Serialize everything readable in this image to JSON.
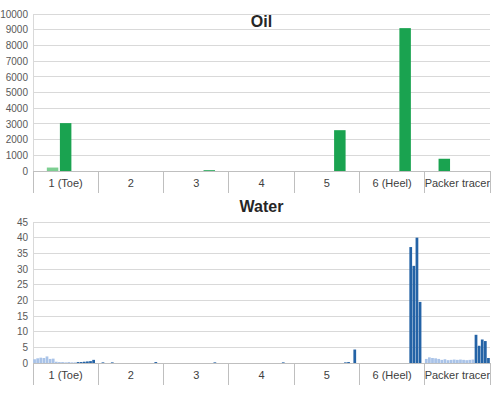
{
  "chart_data": [
    {
      "type": "bar",
      "title": "Oil",
      "categories": [
        null,
        null,
        "1 (Toe)",
        null,
        null,
        null,
        null,
        "2",
        null,
        null,
        null,
        null,
        "3",
        null,
        null,
        null,
        null,
        "4",
        null,
        null,
        null,
        null,
        "5",
        null,
        null,
        null,
        null,
        "6 (Heel)",
        null,
        null,
        null,
        null,
        "Packer tracer",
        null,
        null
      ],
      "values": [
        0,
        220,
        3050,
        0,
        0,
        0,
        0,
        0,
        0,
        0,
        0,
        0,
        0,
        50,
        0,
        0,
        0,
        0,
        0,
        0,
        0,
        0,
        0,
        2600,
        0,
        0,
        0,
        0,
        9100,
        0,
        0,
        780,
        0,
        0,
        0
      ],
      "colors": [
        "#1aa350",
        "#7dcf92",
        "#1aa350",
        "#1aa350",
        "#1aa350",
        "#1aa350",
        "#1aa350",
        "#1aa350",
        "#1aa350",
        "#1aa350",
        "#1aa350",
        "#1aa350",
        "#1aa350",
        "#1aa350",
        "#1aa350",
        "#1aa350",
        "#1aa350",
        "#1aa350",
        "#1aa350",
        "#1aa350",
        "#1aa350",
        "#1aa350",
        "#1aa350",
        "#1aa350",
        "#1aa350",
        "#1aa350",
        "#1aa350",
        "#1aa350",
        "#1aa350",
        "#1aa350",
        "#1aa350",
        "#1aa350",
        "#1aa350",
        "#1aa350",
        "#1aa350"
      ],
      "ylim": [
        0,
        10000
      ],
      "yticks": [
        0,
        1000,
        2000,
        3000,
        4000,
        5000,
        6000,
        7000,
        8000,
        9000,
        10000
      ],
      "grid": true
    },
    {
      "type": "bar",
      "title": "Water",
      "categories": [
        null,
        null,
        null,
        null,
        null,
        null,
        null,
        null,
        null,
        null,
        "1 (Toe)",
        null,
        null,
        null,
        null,
        null,
        null,
        null,
        null,
        null,
        null,
        null,
        null,
        null,
        null,
        null,
        null,
        null,
        null,
        null,
        null,
        "2",
        null,
        null,
        null,
        null,
        null,
        null,
        null,
        null,
        null,
        null,
        null,
        null,
        null,
        null,
        null,
        null,
        null,
        null,
        null,
        null,
        "3",
        null,
        null,
        null,
        null,
        null,
        null,
        null,
        null,
        null,
        null,
        null,
        null,
        null,
        null,
        null,
        null,
        null,
        null,
        null,
        null,
        "4",
        null,
        null,
        null,
        null,
        null,
        null,
        null,
        null,
        null,
        null,
        null,
        null,
        null,
        null,
        null,
        null,
        null,
        null,
        null,
        null,
        "5",
        null,
        null,
        null,
        null,
        null,
        null,
        null,
        null,
        null,
        null,
        null,
        null,
        null,
        null,
        null,
        null,
        null,
        null,
        null,
        null,
        "6 (Heel)",
        null,
        null,
        null,
        null,
        null,
        null,
        null,
        null,
        null,
        null,
        null,
        null,
        null,
        null,
        null,
        null,
        null,
        null,
        null,
        null,
        "Packer tracer",
        null,
        null,
        null,
        null,
        null,
        null,
        null,
        null,
        null,
        null
      ],
      "values": [
        1.2,
        1.5,
        1.7,
        1.6,
        2.1,
        1.3,
        1.4,
        0.4,
        0.3,
        0.3,
        0.2,
        0.3,
        0.2,
        0.2,
        0.3,
        0.3,
        0.4,
        0.5,
        0.6,
        1,
        0,
        0,
        0.2,
        0,
        0,
        0.2,
        0,
        0,
        0,
        0,
        0,
        0,
        0,
        0,
        0,
        0,
        0,
        0,
        0,
        0.3,
        0,
        0,
        0,
        0,
        0,
        0,
        0,
        0,
        0,
        0,
        0,
        0,
        0,
        0,
        0,
        0,
        0,
        0,
        0.2,
        0,
        0,
        0,
        0,
        0,
        0,
        0,
        0,
        0,
        0,
        0,
        0,
        0,
        0,
        0,
        0,
        0,
        0,
        0,
        0,
        0,
        0.2,
        0,
        0,
        0,
        0,
        0,
        0,
        0,
        0,
        0,
        0,
        0,
        0,
        0,
        0,
        0,
        0,
        0,
        0,
        0,
        0.2,
        0.3,
        0,
        4.3,
        0,
        0,
        0,
        0,
        0,
        0,
        0,
        0,
        0,
        0,
        0,
        0,
        0,
        0,
        0,
        0,
        0,
        37,
        31,
        40,
        19.5,
        0,
        1.3,
        1.8,
        1.6,
        1.5,
        1.3,
        1,
        1.2,
        0.9,
        1,
        1.1,
        1,
        1.1,
        1,
        0.9,
        1,
        1.1,
        9,
        5.5,
        7.5,
        7,
        1.6
      ],
      "colors": [
        "#a9c3e8",
        "#a9c3e8",
        "#a9c3e8",
        "#a9c3e8",
        "#a9c3e8",
        "#a9c3e8",
        "#a9c3e8",
        "#a9c3e8",
        "#a9c3e8",
        "#a9c3e8",
        "#a9c3e8",
        "#a9c3e8",
        "#a9c3e8",
        "#a9c3e8",
        "#2463a6",
        "#2463a6",
        "#2463a6",
        "#2463a6",
        "#2463a6",
        "#2463a6",
        "#2463a6",
        "#2463a6",
        "#2463a6",
        "#2463a6",
        "#2463a6",
        "#2463a6",
        "#2463a6",
        "#2463a6",
        "#2463a6",
        "#2463a6",
        "#2463a6",
        "#2463a6",
        "#2463a6",
        "#2463a6",
        "#2463a6",
        "#2463a6",
        "#2463a6",
        "#2463a6",
        "#2463a6",
        "#2463a6",
        "#2463a6",
        "#2463a6",
        "#2463a6",
        "#2463a6",
        "#2463a6",
        "#2463a6",
        "#2463a6",
        "#2463a6",
        "#2463a6",
        "#2463a6",
        "#2463a6",
        "#2463a6",
        "#2463a6",
        "#2463a6",
        "#2463a6",
        "#2463a6",
        "#2463a6",
        "#2463a6",
        "#2463a6",
        "#2463a6",
        "#2463a6",
        "#2463a6",
        "#2463a6",
        "#2463a6",
        "#2463a6",
        "#2463a6",
        "#2463a6",
        "#2463a6",
        "#2463a6",
        "#2463a6",
        "#2463a6",
        "#2463a6",
        "#2463a6",
        "#2463a6",
        "#2463a6",
        "#2463a6",
        "#2463a6",
        "#2463a6",
        "#2463a6",
        "#2463a6",
        "#2463a6",
        "#2463a6",
        "#2463a6",
        "#2463a6",
        "#2463a6",
        "#2463a6",
        "#2463a6",
        "#2463a6",
        "#2463a6",
        "#2463a6",
        "#2463a6",
        "#2463a6",
        "#2463a6",
        "#2463a6",
        "#2463a6",
        "#2463a6",
        "#2463a6",
        "#2463a6",
        "#2463a6",
        "#2463a6",
        "#2463a6",
        "#2463a6",
        "#2463a6",
        "#2463a6",
        "#2463a6",
        "#2463a6",
        "#2463a6",
        "#2463a6",
        "#2463a6",
        "#2463a6",
        "#2463a6",
        "#2463a6",
        "#2463a6",
        "#2463a6",
        "#2463a6",
        "#2463a6",
        "#2463a6",
        "#2463a6",
        "#2463a6",
        "#2463a6",
        "#2463a6",
        "#2463a6",
        "#2463a6",
        "#2463a6",
        "#2463a6",
        "#2463a6",
        "#a9c3e8",
        "#a9c3e8",
        "#a9c3e8",
        "#a9c3e8",
        "#a9c3e8",
        "#a9c3e8",
        "#a9c3e8",
        "#a9c3e8",
        "#a9c3e8",
        "#a9c3e8",
        "#a9c3e8",
        "#a9c3e8",
        "#a9c3e8",
        "#a9c3e8",
        "#a9c3e8",
        "#a9c3e8",
        "#2463a6",
        "#2463a6",
        "#2463a6",
        "#2463a6",
        "#2463a6"
      ],
      "ylim": [
        0,
        45
      ],
      "yticks": [
        0,
        5,
        10,
        15,
        20,
        25,
        30,
        35,
        40,
        45
      ],
      "grid": true
    }
  ]
}
